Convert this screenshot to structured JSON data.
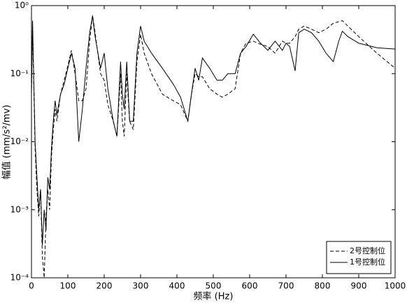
{
  "chart_data": {
    "type": "line",
    "xlabel": "频率 (Hz)",
    "ylabel": "幅值 (mm/s²/mv)",
    "x": [
      0,
      3,
      6,
      10,
      15,
      20,
      25,
      30,
      35,
      40,
      45,
      50,
      55,
      60,
      65,
      70,
      80,
      90,
      100,
      110,
      120,
      130,
      140,
      150,
      160,
      168,
      175,
      190,
      200,
      210,
      225,
      235,
      245,
      250,
      255,
      262,
      270,
      280,
      290,
      300,
      310,
      330,
      360,
      390,
      410,
      430,
      440,
      450,
      460,
      470,
      490,
      510,
      525,
      540,
      560,
      575,
      590,
      610,
      630,
      650,
      670,
      690,
      700,
      710,
      725,
      735,
      750,
      770,
      790,
      810,
      830,
      845,
      855,
      870,
      900,
      950,
      1000
    ],
    "series": [
      {
        "name": "2号控制位",
        "color": "#000000",
        "line_style": "dashed",
        "values": [
          0.05,
          0.5,
          0.08,
          0.008,
          0.002,
          0.0008,
          0.002,
          0.0002,
          0.0001,
          0.0008,
          0.002,
          0.001,
          0.006,
          0.015,
          0.03,
          0.02,
          0.05,
          0.08,
          0.13,
          0.22,
          0.1,
          0.04,
          0.04,
          0.06,
          0.3,
          0.72,
          0.4,
          0.1,
          0.08,
          0.035,
          0.02,
          0.012,
          0.1,
          0.02,
          0.012,
          0.1,
          0.02,
          0.015,
          0.15,
          0.38,
          0.2,
          0.1,
          0.05,
          0.04,
          0.035,
          0.02,
          0.05,
          0.1,
          0.09,
          0.09,
          0.06,
          0.05,
          0.045,
          0.05,
          0.06,
          0.2,
          0.28,
          0.3,
          0.27,
          0.25,
          0.2,
          0.3,
          0.28,
          0.28,
          0.35,
          0.45,
          0.5,
          0.45,
          0.4,
          0.45,
          0.55,
          0.58,
          0.6,
          0.5,
          0.35,
          0.2,
          0.12
        ]
      },
      {
        "name": "1号控制位",
        "color": "#000000",
        "line_style": "solid",
        "values": [
          0.05,
          0.6,
          0.1,
          0.01,
          0.003,
          0.001,
          0.002,
          0.0003,
          0.001,
          0.0005,
          0.003,
          0.002,
          0.008,
          0.02,
          0.04,
          0.025,
          0.05,
          0.07,
          0.12,
          0.2,
          0.12,
          0.01,
          0.03,
          0.12,
          0.4,
          0.7,
          0.35,
          0.12,
          0.2,
          0.06,
          0.02,
          0.012,
          0.15,
          0.05,
          0.03,
          0.15,
          0.02,
          0.02,
          0.2,
          0.5,
          0.3,
          0.2,
          0.12,
          0.07,
          0.045,
          0.02,
          0.05,
          0.12,
          0.08,
          0.17,
          0.12,
          0.08,
          0.08,
          0.1,
          0.1,
          0.2,
          0.25,
          0.38,
          0.28,
          0.22,
          0.3,
          0.22,
          0.28,
          0.25,
          0.11,
          0.4,
          0.45,
          0.4,
          0.3,
          0.2,
          0.15,
          0.3,
          0.42,
          0.35,
          0.28,
          0.24,
          0.23
        ]
      }
    ],
    "xlim": [
      0,
      1000
    ],
    "xticks": [
      0,
      100,
      200,
      300,
      400,
      500,
      600,
      700,
      800,
      900,
      1000
    ],
    "ylim": [
      0.0001,
      1
    ],
    "yscale": "log",
    "yticks": [
      {
        "value": 0.0001,
        "label": "10⁻⁴"
      },
      {
        "value": 0.001,
        "label": "10⁻³"
      },
      {
        "value": 0.01,
        "label": "10⁻²"
      },
      {
        "value": 0.1,
        "label": "10⁻¹"
      },
      {
        "value": 1,
        "label": "10⁰"
      }
    ],
    "grid": false,
    "legend": "lower right"
  }
}
